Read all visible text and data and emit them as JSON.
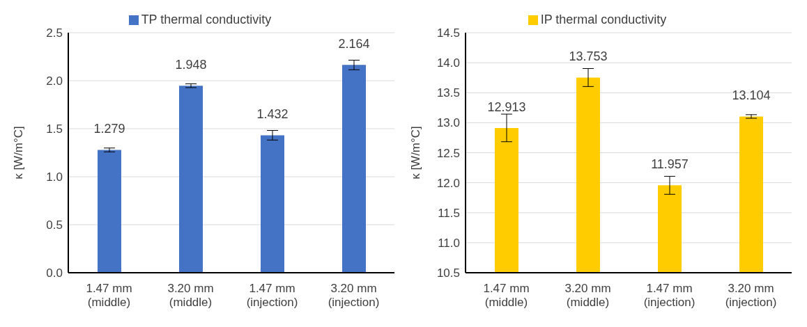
{
  "chart_data": [
    {
      "type": "bar",
      "ylabel": "κ [W/m°C]",
      "categories": [
        "1.47 mm\n(middle)",
        "3.20 mm\n(middle)",
        "1.47 mm\n(injection)",
        "3.20 mm\n(injection)"
      ],
      "series": [
        {
          "name": "TP thermal conductivity",
          "color": "#4472c4",
          "values": [
            1.279,
            1.948,
            1.432,
            2.164
          ],
          "errors": [
            0.02,
            0.02,
            0.05,
            0.05
          ]
        }
      ],
      "ylim": [
        0,
        2.5
      ],
      "yticks": [
        {
          "value": 0,
          "label": "0.0"
        },
        0.5,
        {
          "value": 1,
          "label": "1.0"
        },
        1.5,
        {
          "value": 2,
          "label": "2.0"
        },
        2.5
      ],
      "grid": "y",
      "legend": "top",
      "data_labels": true
    },
    {
      "type": "bar",
      "ylabel": "κ [W/m°C]",
      "categories": [
        "1.47 mm\n(middle)",
        "3.20 mm\n(middle)",
        "1.47 mm\n(injection)",
        "3.20 mm\n(injection)"
      ],
      "series": [
        {
          "name": "IP thermal conductivity",
          "color": "#ffcc00",
          "values": [
            12.913,
            13.753,
            11.957,
            13.104
          ],
          "errors": [
            0.23,
            0.15,
            0.15,
            0.03
          ]
        }
      ],
      "ylim": [
        10.5,
        14.5
      ],
      "yticks": [
        10.5,
        {
          "value": 11,
          "label": "11.0"
        },
        11.5,
        {
          "value": 12,
          "label": "12.0"
        },
        12.5,
        {
          "value": 13,
          "label": "13.0"
        },
        13.5,
        {
          "value": 14,
          "label": "14.0"
        },
        14.5
      ],
      "grid": "y",
      "legend": "top",
      "data_labels": true
    }
  ]
}
